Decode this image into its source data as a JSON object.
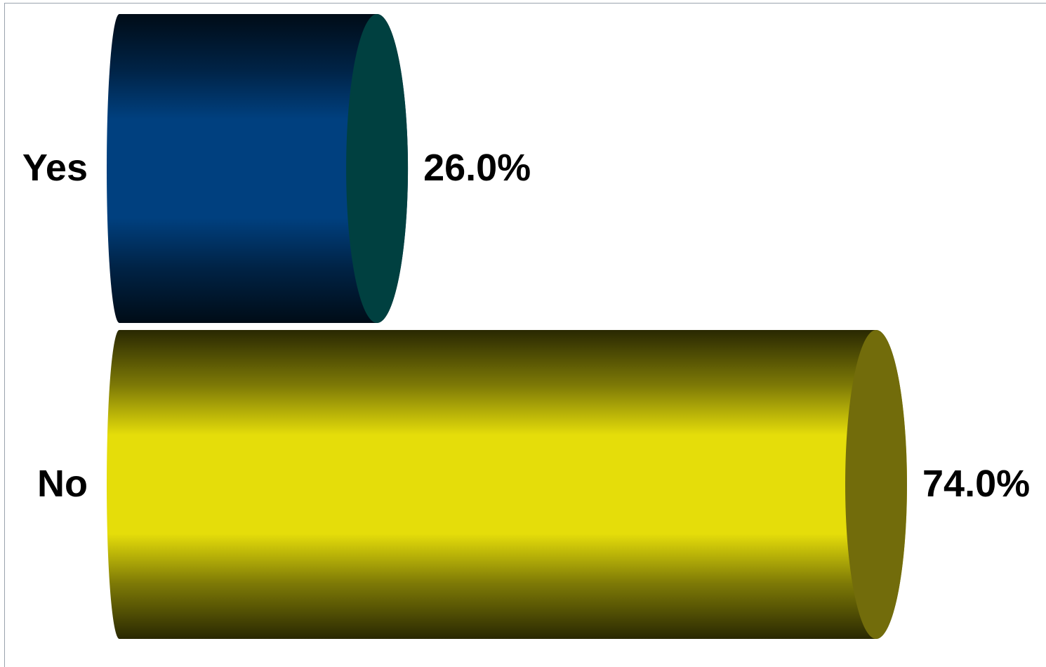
{
  "chart_data": {
    "type": "bar",
    "orientation": "horizontal",
    "style": "3d-cylinder",
    "categories": [
      "Yes",
      "No"
    ],
    "values": [
      26.0,
      74.0
    ],
    "value_labels": [
      "26.0%",
      "74.0%"
    ],
    "colors": [
      "#00407f",
      "#e5dd0a"
    ],
    "cap_colors": [
      "#004040",
      "#726c0b"
    ],
    "title": "",
    "xlabel": "",
    "ylabel": "",
    "xlim": [
      0,
      74.0
    ],
    "grid": false,
    "legend": "none"
  }
}
